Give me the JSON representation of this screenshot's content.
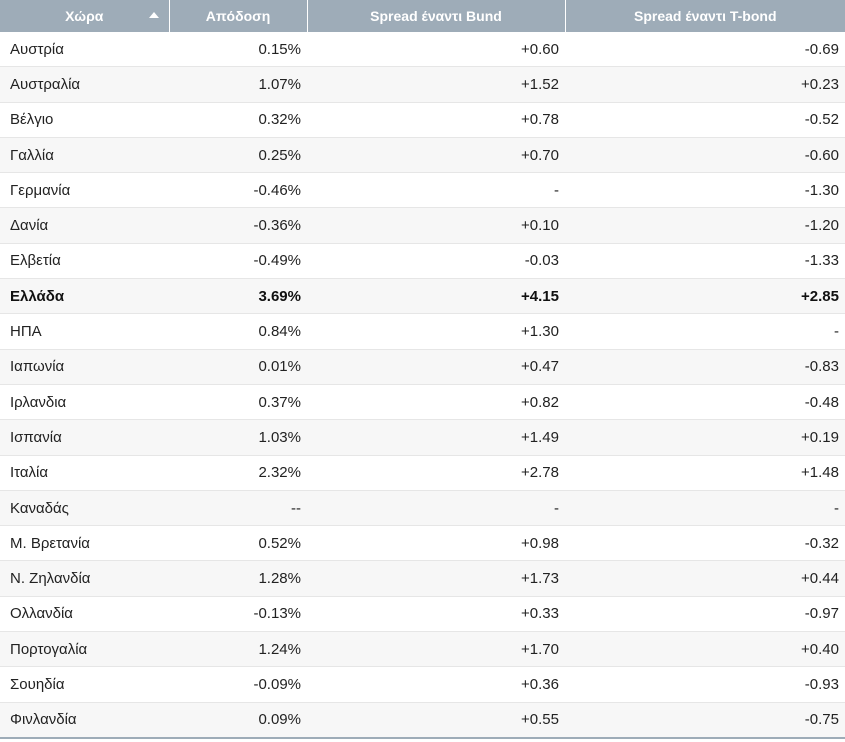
{
  "table": {
    "headers": [
      "Χώρα",
      "Απόδοση",
      "Spread έναντι Bund",
      "Spread έναντι T-bond"
    ],
    "sort_column": 0,
    "rows": [
      {
        "country": "Αυστρία",
        "yield": "0.15%",
        "bund": "+0.60",
        "tbond": "-0.69",
        "bold": false
      },
      {
        "country": "Αυστραλία",
        "yield": "1.07%",
        "bund": "+1.52",
        "tbond": "+0.23",
        "bold": false
      },
      {
        "country": "Βέλγιο",
        "yield": "0.32%",
        "bund": "+0.78",
        "tbond": "-0.52",
        "bold": false
      },
      {
        "country": "Γαλλία",
        "yield": "0.25%",
        "bund": "+0.70",
        "tbond": "-0.60",
        "bold": false
      },
      {
        "country": "Γερμανία",
        "yield": "-0.46%",
        "bund": "-",
        "tbond": "-1.30",
        "bold": false
      },
      {
        "country": "Δανία",
        "yield": "-0.36%",
        "bund": "+0.10",
        "tbond": "-1.20",
        "bold": false
      },
      {
        "country": "Ελβετία",
        "yield": "-0.49%",
        "bund": "-0.03",
        "tbond": "-1.33",
        "bold": false
      },
      {
        "country": "Ελλάδα",
        "yield": "3.69%",
        "bund": "+4.15",
        "tbond": "+2.85",
        "bold": true
      },
      {
        "country": "ΗΠΑ",
        "yield": "0.84%",
        "bund": "+1.30",
        "tbond": "-",
        "bold": false
      },
      {
        "country": "Ιαπωνία",
        "yield": "0.01%",
        "bund": "+0.47",
        "tbond": "-0.83",
        "bold": false
      },
      {
        "country": "Ιρλανδια",
        "yield": "0.37%",
        "bund": "+0.82",
        "tbond": "-0.48",
        "bold": false
      },
      {
        "country": "Ισπανία",
        "yield": "1.03%",
        "bund": "+1.49",
        "tbond": "+0.19",
        "bold": false
      },
      {
        "country": "Ιταλία",
        "yield": "2.32%",
        "bund": "+2.78",
        "tbond": "+1.48",
        "bold": false
      },
      {
        "country": "Καναδάς",
        "yield": "--",
        "bund": "-",
        "tbond": "-",
        "bold": false
      },
      {
        "country": "Μ. Βρετανία",
        "yield": "0.52%",
        "bund": "+0.98",
        "tbond": "-0.32",
        "bold": false
      },
      {
        "country": "Ν. Ζηλανδία",
        "yield": "1.28%",
        "bund": "+1.73",
        "tbond": "+0.44",
        "bold": false
      },
      {
        "country": "Ολλανδία",
        "yield": "-0.13%",
        "bund": "+0.33",
        "tbond": "-0.97",
        "bold": false
      },
      {
        "country": "Πορτογαλία",
        "yield": "1.24%",
        "bund": "+1.70",
        "tbond": "+0.40",
        "bold": false
      },
      {
        "country": "Σουηδία",
        "yield": "-0.09%",
        "bund": "+0.36",
        "tbond": "-0.93",
        "bold": false
      },
      {
        "country": "Φινλανδία",
        "yield": "0.09%",
        "bund": "+0.55",
        "tbond": "-0.75",
        "bold": false
      }
    ]
  }
}
